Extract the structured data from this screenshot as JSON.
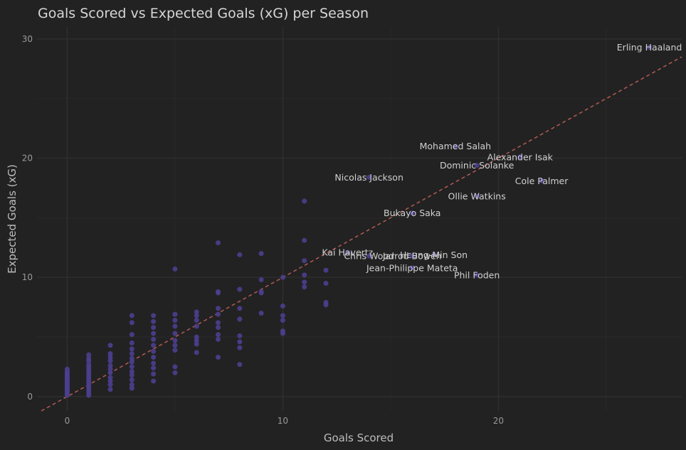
{
  "chart_data": {
    "type": "scatter",
    "title": "Goals Scored vs Expected Goals (xG) per Season",
    "xlabel": "Goals Scored",
    "ylabel": "Expected Goals (xG)",
    "xlim": [
      -1.4,
      28.5
    ],
    "ylim": [
      -1.2,
      31
    ],
    "xticks": [
      0,
      10,
      20
    ],
    "yticks": [
      0,
      10,
      20,
      30
    ],
    "grid": true,
    "reference_line": "y = x",
    "colors": {
      "background": "#222222",
      "grid_major": "#2f2f2f",
      "grid_minor": "#292929",
      "point": "#4b3f8f",
      "reference": "#b55a55"
    },
    "points": [
      [
        0,
        0.1
      ],
      [
        0,
        0.2
      ],
      [
        0,
        0.3
      ],
      [
        0,
        0.4
      ],
      [
        0,
        0.5
      ],
      [
        0,
        0.6
      ],
      [
        0,
        0.7
      ],
      [
        0,
        0.8
      ],
      [
        0,
        0.9
      ],
      [
        0,
        1.0
      ],
      [
        0,
        1.1
      ],
      [
        0,
        1.2
      ],
      [
        0,
        1.3
      ],
      [
        0,
        1.4
      ],
      [
        0,
        1.5
      ],
      [
        0,
        1.6
      ],
      [
        0,
        1.7
      ],
      [
        0,
        1.8
      ],
      [
        0,
        1.9
      ],
      [
        0,
        2.0
      ],
      [
        0,
        2.1
      ],
      [
        0,
        2.3
      ],
      [
        1,
        0.1
      ],
      [
        1,
        0.3
      ],
      [
        1,
        0.5
      ],
      [
        1,
        0.7
      ],
      [
        1,
        0.9
      ],
      [
        1,
        1.1
      ],
      [
        1,
        1.3
      ],
      [
        1,
        1.5
      ],
      [
        1,
        1.7
      ],
      [
        1,
        1.9
      ],
      [
        1,
        2.1
      ],
      [
        1,
        2.3
      ],
      [
        1,
        2.5
      ],
      [
        1,
        2.7
      ],
      [
        1,
        3.0
      ],
      [
        1,
        3.2
      ],
      [
        1,
        3.5
      ],
      [
        2,
        0.6
      ],
      [
        2,
        1.0
      ],
      [
        2,
        1.3
      ],
      [
        2,
        1.6
      ],
      [
        2,
        2.0
      ],
      [
        2,
        2.3
      ],
      [
        2,
        2.6
      ],
      [
        2,
        3.0
      ],
      [
        2,
        3.3
      ],
      [
        2,
        3.6
      ],
      [
        2,
        4.3
      ],
      [
        3,
        0.7
      ],
      [
        3,
        1.0
      ],
      [
        3,
        1.4
      ],
      [
        3,
        1.8
      ],
      [
        3,
        2.1
      ],
      [
        3,
        2.5
      ],
      [
        3,
        2.9
      ],
      [
        3,
        3.2
      ],
      [
        3,
        3.6
      ],
      [
        3,
        4.0
      ],
      [
        3,
        4.5
      ],
      [
        3,
        5.2
      ],
      [
        3,
        6.2
      ],
      [
        3,
        6.8
      ],
      [
        4,
        1.3
      ],
      [
        4,
        1.9
      ],
      [
        4,
        2.4
      ],
      [
        4,
        2.8
      ],
      [
        4,
        3.3
      ],
      [
        4,
        3.8
      ],
      [
        4,
        4.3
      ],
      [
        4,
        4.8
      ],
      [
        4,
        5.3
      ],
      [
        4,
        5.8
      ],
      [
        4,
        6.3
      ],
      [
        4,
        6.8
      ],
      [
        5,
        2.0
      ],
      [
        5,
        2.5
      ],
      [
        5,
        3.9
      ],
      [
        5,
        4.3
      ],
      [
        5,
        4.7
      ],
      [
        5,
        5.3
      ],
      [
        5,
        5.9
      ],
      [
        5,
        6.4
      ],
      [
        5,
        6.9
      ],
      [
        5,
        10.7
      ],
      [
        6,
        3.7
      ],
      [
        6,
        4.4
      ],
      [
        6,
        4.7
      ],
      [
        6,
        5.0
      ],
      [
        6,
        5.9
      ],
      [
        6,
        6.4
      ],
      [
        6,
        6.8
      ],
      [
        6,
        7.1
      ],
      [
        7,
        3.3
      ],
      [
        7,
        4.8
      ],
      [
        7,
        5.2
      ],
      [
        7,
        5.8
      ],
      [
        7,
        6.2
      ],
      [
        7,
        6.9
      ],
      [
        7,
        7.4
      ],
      [
        7,
        8.7
      ],
      [
        7,
        8.8
      ],
      [
        7,
        12.9
      ],
      [
        8,
        2.7
      ],
      [
        8,
        4.1
      ],
      [
        8,
        4.6
      ],
      [
        8,
        5.1
      ],
      [
        8,
        6.5
      ],
      [
        8,
        7.4
      ],
      [
        8,
        9.0
      ],
      [
        8,
        11.9
      ],
      [
        9,
        7.0
      ],
      [
        9,
        8.7
      ],
      [
        9,
        8.8
      ],
      [
        9,
        9.8
      ],
      [
        9,
        12.0
      ],
      [
        10,
        5.3
      ],
      [
        10,
        5.5
      ],
      [
        10,
        6.4
      ],
      [
        10,
        6.8
      ],
      [
        10,
        7.6
      ],
      [
        10,
        10.0
      ],
      [
        11,
        9.2
      ],
      [
        11,
        9.6
      ],
      [
        11,
        10.2
      ],
      [
        11,
        11.4
      ],
      [
        11,
        13.1
      ],
      [
        11,
        16.4
      ],
      [
        12,
        7.7
      ],
      [
        12,
        7.9
      ],
      [
        12,
        9.5
      ],
      [
        12,
        10.6
      ]
    ],
    "annotations": [
      {
        "label": "Erling Haaland",
        "x": 27,
        "y": 29.3
      },
      {
        "label": "Mohamed Salah",
        "x": 18,
        "y": 21.0
      },
      {
        "label": "Alexander Isak",
        "x": 21,
        "y": 20.1
      },
      {
        "label": "Dominic Solanke",
        "x": 19,
        "y": 19.4
      },
      {
        "label": "Nicolas Jackson",
        "x": 14,
        "y": 18.4
      },
      {
        "label": "Cole Palmer",
        "x": 22,
        "y": 18.1
      },
      {
        "label": "Ollie Watkins",
        "x": 19,
        "y": 16.8
      },
      {
        "label": "Bukayo Saka",
        "x": 16,
        "y": 15.4
      },
      {
        "label": "Kai Havertz",
        "x": 13,
        "y": 12.1
      },
      {
        "label": "Heung-Min Son",
        "x": 17,
        "y": 11.9
      },
      {
        "label": "Chris Wood",
        "x": 14,
        "y": 11.8
      },
      {
        "label": "Jarrod Bowen",
        "x": 16,
        "y": 11.8
      },
      {
        "label": "Jean-Philippe Mateta",
        "x": 16,
        "y": 10.8
      },
      {
        "label": "Phil Foden",
        "x": 19,
        "y": 10.2
      }
    ]
  }
}
